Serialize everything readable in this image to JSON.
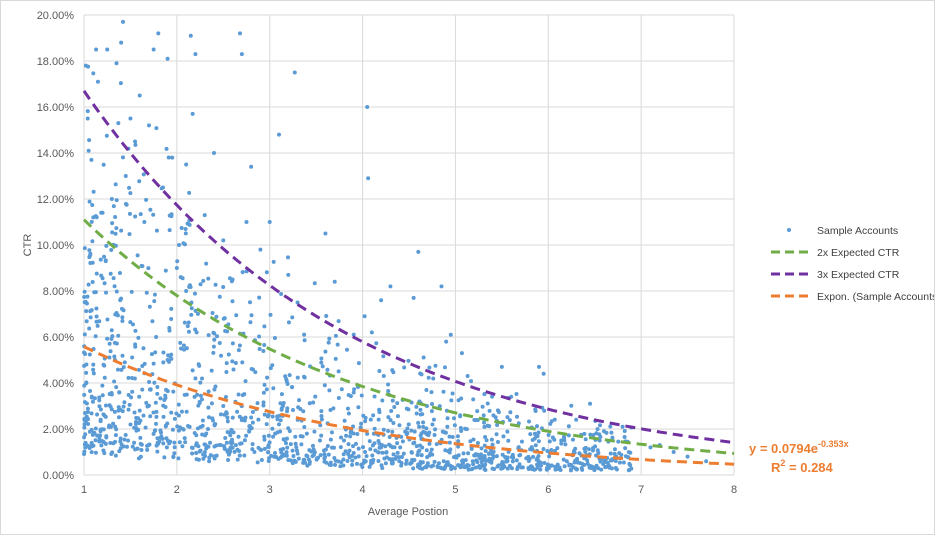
{
  "chart_data": {
    "type": "scatter",
    "xlabel": "Average Postion",
    "ylabel": "CTR",
    "xlim": [
      1,
      8
    ],
    "ylim": [
      0,
      0.2
    ],
    "x_ticks": [
      "1",
      "2",
      "3",
      "4",
      "5",
      "6",
      "7",
      "8"
    ],
    "y_ticks": [
      "0.00%",
      "2.00%",
      "4.00%",
      "6.00%",
      "8.00%",
      "10.00%",
      "12.00%",
      "14.00%",
      "16.00%",
      "18.00%",
      "20.00%"
    ],
    "grid": "vertical-and-horizontal",
    "legend_position": "right",
    "series": [
      {
        "name": "Sample Accounts",
        "kind": "points",
        "color": "#5b9bd5",
        "points": [
          [
            1.02,
            0.178
          ],
          [
            1.04,
            0.155
          ],
          [
            1.05,
            0.141
          ],
          [
            1.08,
            0.137
          ],
          [
            1.1,
            0.112
          ],
          [
            1.13,
            0.185
          ],
          [
            1.15,
            0.171
          ],
          [
            1.2,
            0.114
          ],
          [
            1.25,
            0.185
          ],
          [
            1.3,
            0.12
          ],
          [
            1.35,
            0.179
          ],
          [
            1.37,
            0.153
          ],
          [
            1.4,
            0.188
          ],
          [
            1.42,
            0.197
          ],
          [
            1.45,
            0.13
          ],
          [
            1.5,
            0.155
          ],
          [
            1.55,
            0.145
          ],
          [
            1.6,
            0.165
          ],
          [
            1.65,
            0.11
          ],
          [
            1.7,
            0.152
          ],
          [
            1.75,
            0.185
          ],
          [
            1.8,
            0.192
          ],
          [
            1.85,
            0.125
          ],
          [
            1.9,
            0.181
          ],
          [
            1.95,
            0.138
          ],
          [
            2.0,
            0.09
          ],
          [
            2.1,
            0.135
          ],
          [
            2.15,
            0.191
          ],
          [
            2.17,
            0.157
          ],
          [
            2.2,
            0.183
          ],
          [
            2.3,
            0.113
          ],
          [
            2.4,
            0.14
          ],
          [
            2.5,
            0.102
          ],
          [
            2.6,
            0.085
          ],
          [
            2.68,
            0.192
          ],
          [
            2.7,
            0.183
          ],
          [
            2.75,
            0.11
          ],
          [
            2.8,
            0.134
          ],
          [
            2.9,
            0.098
          ],
          [
            3.0,
            0.11
          ],
          [
            3.1,
            0.148
          ],
          [
            3.2,
            0.087
          ],
          [
            3.27,
            0.175
          ],
          [
            3.3,
            0.075
          ],
          [
            3.6,
            0.105
          ],
          [
            3.7,
            0.084
          ],
          [
            4.05,
            0.16
          ],
          [
            4.06,
            0.129
          ],
          [
            4.1,
            0.062
          ],
          [
            4.2,
            0.076
          ],
          [
            4.3,
            0.082
          ],
          [
            4.55,
            0.077
          ],
          [
            4.6,
            0.097
          ],
          [
            4.85,
            0.082
          ],
          [
            4.9,
            0.058
          ],
          [
            4.95,
            0.061
          ],
          [
            5.07,
            0.053
          ],
          [
            5.5,
            0.047
          ],
          [
            5.6,
            0.034
          ],
          [
            5.9,
            0.047
          ],
          [
            5.95,
            0.044
          ],
          [
            6.45,
            0.031
          ],
          [
            6.3,
            0.024
          ],
          [
            6.6,
            0.019
          ],
          [
            6.8,
            0.021
          ],
          [
            7.1,
            0.012
          ],
          [
            7.2,
            0.013
          ],
          [
            7.35,
            0.01
          ],
          [
            7.5,
            0.008
          ],
          [
            7.7,
            0.006
          ],
          [
            1.1,
            0.048
          ],
          [
            1.3,
            0.035
          ],
          [
            1.6,
            0.028
          ],
          [
            1.9,
            0.05
          ],
          [
            2.2,
            0.042
          ],
          [
            2.5,
            0.03
          ],
          [
            2.8,
            0.025
          ],
          [
            3.1,
            0.022
          ],
          [
            3.4,
            0.018
          ],
          [
            3.8,
            0.015
          ],
          [
            4.2,
            0.012
          ],
          [
            4.6,
            0.01
          ],
          [
            5.0,
            0.008
          ],
          [
            5.4,
            0.009
          ],
          [
            5.8,
            0.007
          ],
          [
            6.2,
            0.006
          ]
        ]
      },
      {
        "name": "2x Expected CTR",
        "kind": "dashed-curve",
        "color": "#70ad47",
        "start": 0.111,
        "decay": 0.353
      },
      {
        "name": "3x Expected CTR",
        "kind": "dashed-curve",
        "color": "#7030a0",
        "start": 0.167,
        "decay": 0.353
      },
      {
        "name": "Expon. (Sample Accounts)",
        "kind": "trendline",
        "color": "#ed7d31",
        "a": 0.0794,
        "b": -0.353
      }
    ],
    "annotation": {
      "equation_prefix": "y = 0.0794e",
      "equation_exponent": "-0.353x",
      "r2_prefix": "R",
      "r2_sup": "2",
      "r2_suffix": " = 0.284",
      "color": "#ed7d31"
    }
  }
}
